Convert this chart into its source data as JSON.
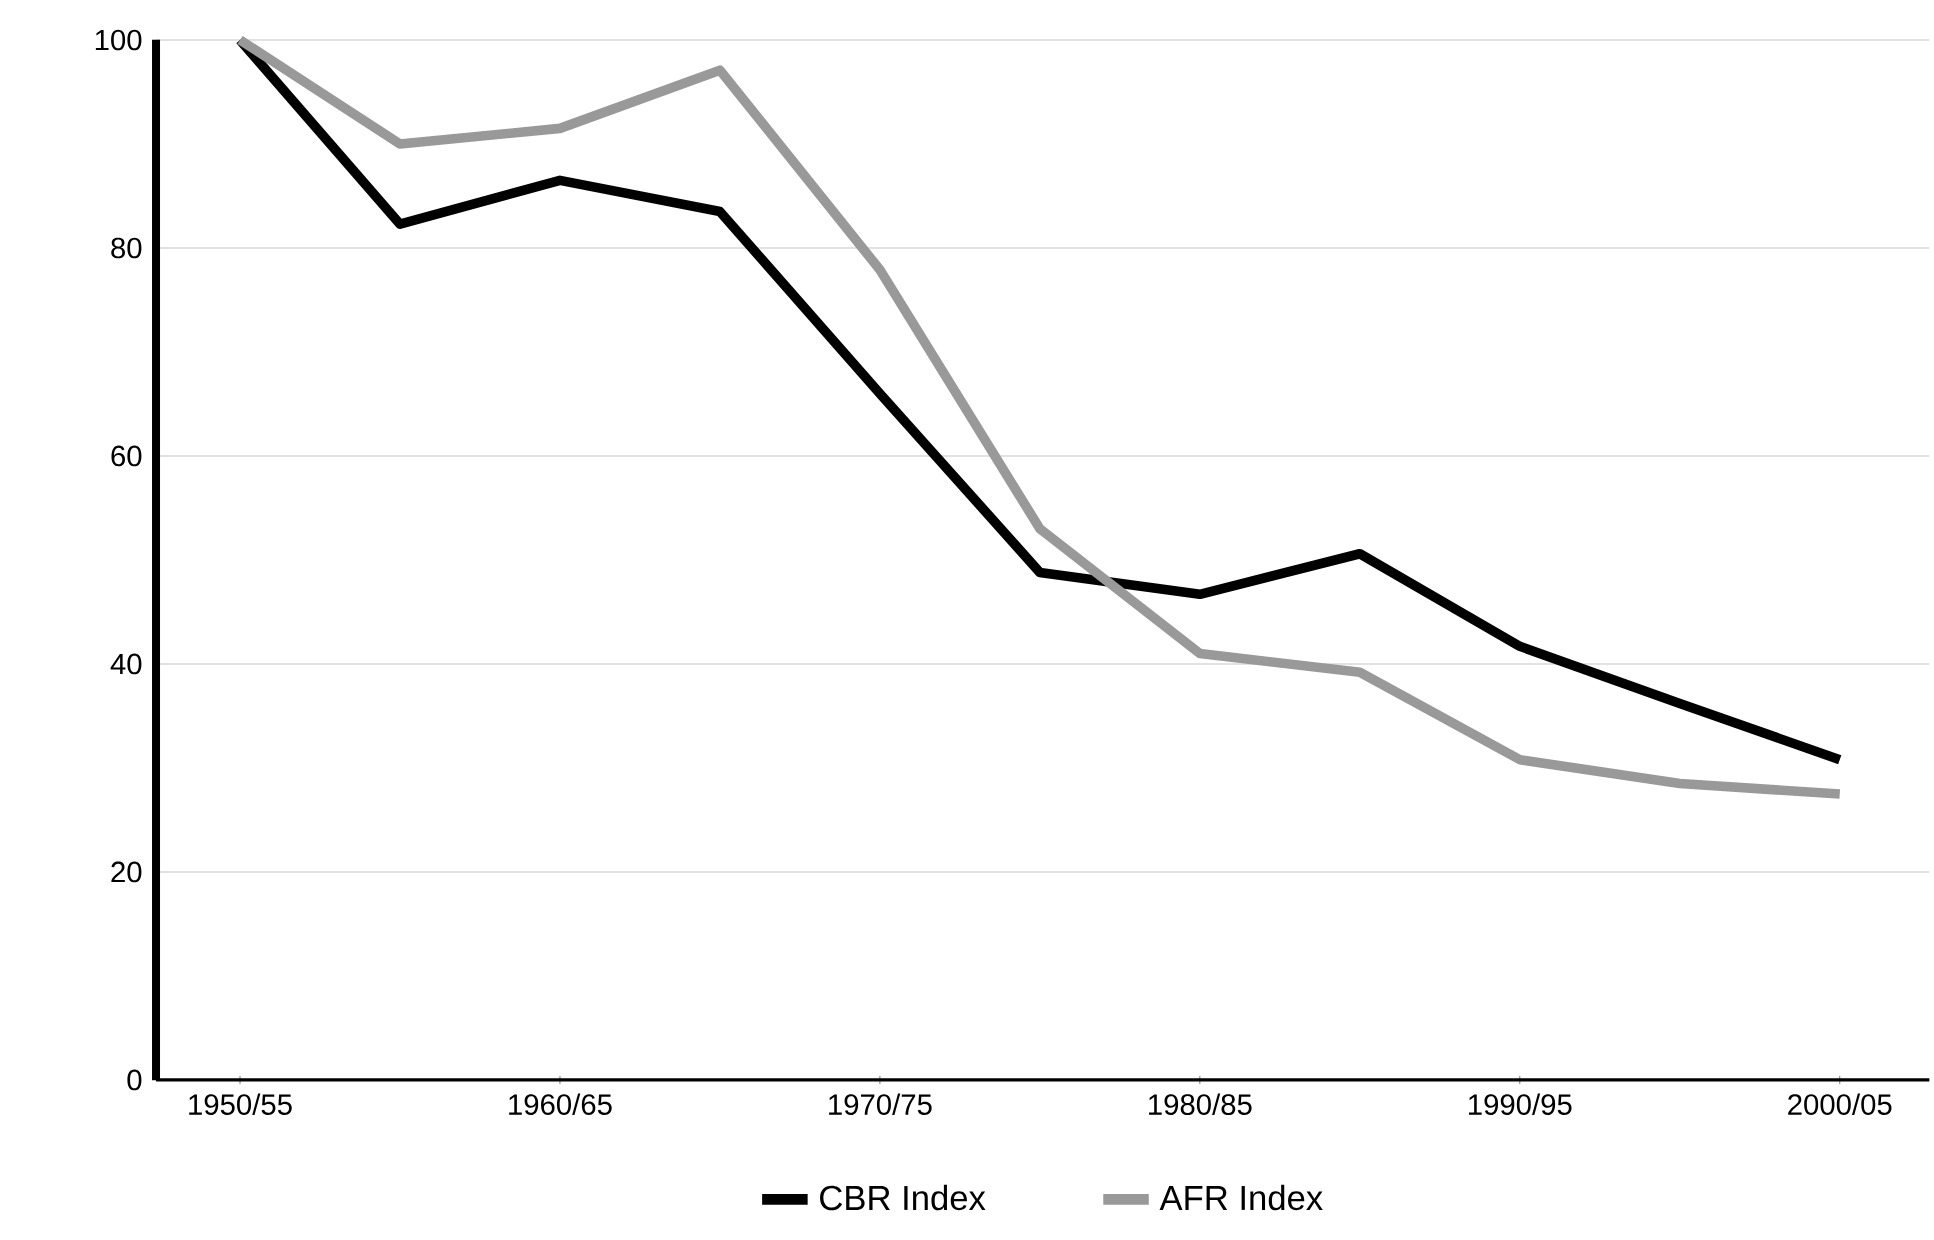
{
  "chart_data": {
    "type": "line",
    "categories": [
      "1950/55",
      null,
      "1960/65",
      null,
      "1970/75",
      null,
      "1980/85",
      null,
      "1990/95",
      null,
      "2000/05"
    ],
    "series": [
      {
        "name": "CBR Index",
        "color": "#000000",
        "values": [
          100,
          82.3,
          86.5,
          83.5,
          66,
          48.8,
          46.7,
          50.6,
          41.7,
          36.2,
          30.8
        ]
      },
      {
        "name": "AFR Index",
        "color": "#999999",
        "values": [
          100,
          90,
          91.5,
          97.1,
          77.9,
          53,
          41,
          39.2,
          30.8,
          28.5,
          27.5
        ]
      }
    ],
    "ylim": [
      0,
      100
    ],
    "yticks": [
      0,
      20,
      40,
      60,
      80,
      100
    ],
    "grid": "y",
    "legend": "bottom",
    "marker": "none",
    "line_style": "solid"
  }
}
